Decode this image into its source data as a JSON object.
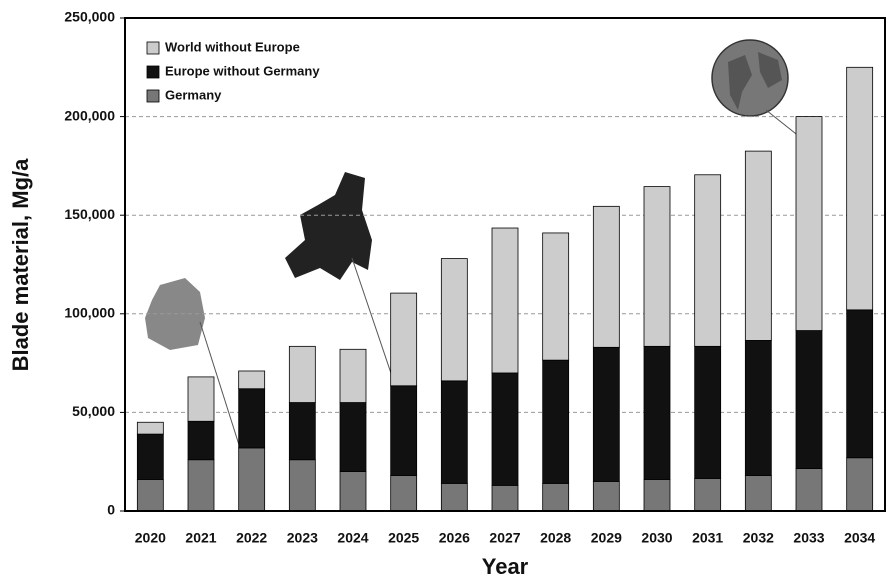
{
  "chart_data": {
    "type": "stacked_bar",
    "y_label": "Blade material, Mg/a",
    "x_label": "Year",
    "categories": [
      "2020",
      "2021",
      "2022",
      "2023",
      "2024",
      "2025",
      "2026",
      "2027",
      "2028",
      "2029",
      "2030",
      "2031",
      "2032",
      "2033",
      "2034"
    ],
    "series": [
      {
        "name": "World without Europe",
        "color": "#cccccc",
        "values": [
          6000,
          22500,
          9000,
          28500,
          27000,
          47000,
          62000,
          73500,
          64500,
          71500,
          81000,
          87000,
          96000,
          108500,
          123000
        ]
      },
      {
        "name": "Europe without Germany",
        "color": "#111111",
        "values": [
          23000,
          19500,
          30000,
          29000,
          35000,
          45500,
          52000,
          57000,
          62500,
          68000,
          67500,
          67000,
          68500,
          70000,
          75000
        ]
      },
      {
        "name": "Germany",
        "color": "#777777",
        "values": [
          16000,
          26000,
          32000,
          26000,
          20000,
          18000,
          14000,
          13000,
          14000,
          15000,
          16000,
          16500,
          18000,
          21500,
          27000
        ]
      }
    ],
    "ylim": [
      0,
      250000
    ],
    "yticks": [
      0,
      {
        "value": 50000,
        "label": "50,000"
      },
      {
        "value": 100000,
        "label": "100,000"
      },
      {
        "value": 150000,
        "label": "150,000"
      },
      {
        "value": 200000,
        "label": "200,000"
      },
      {
        "value": 250000,
        "label": "250,000"
      }
    ],
    "grid": true,
    "legend": "upper-left"
  }
}
